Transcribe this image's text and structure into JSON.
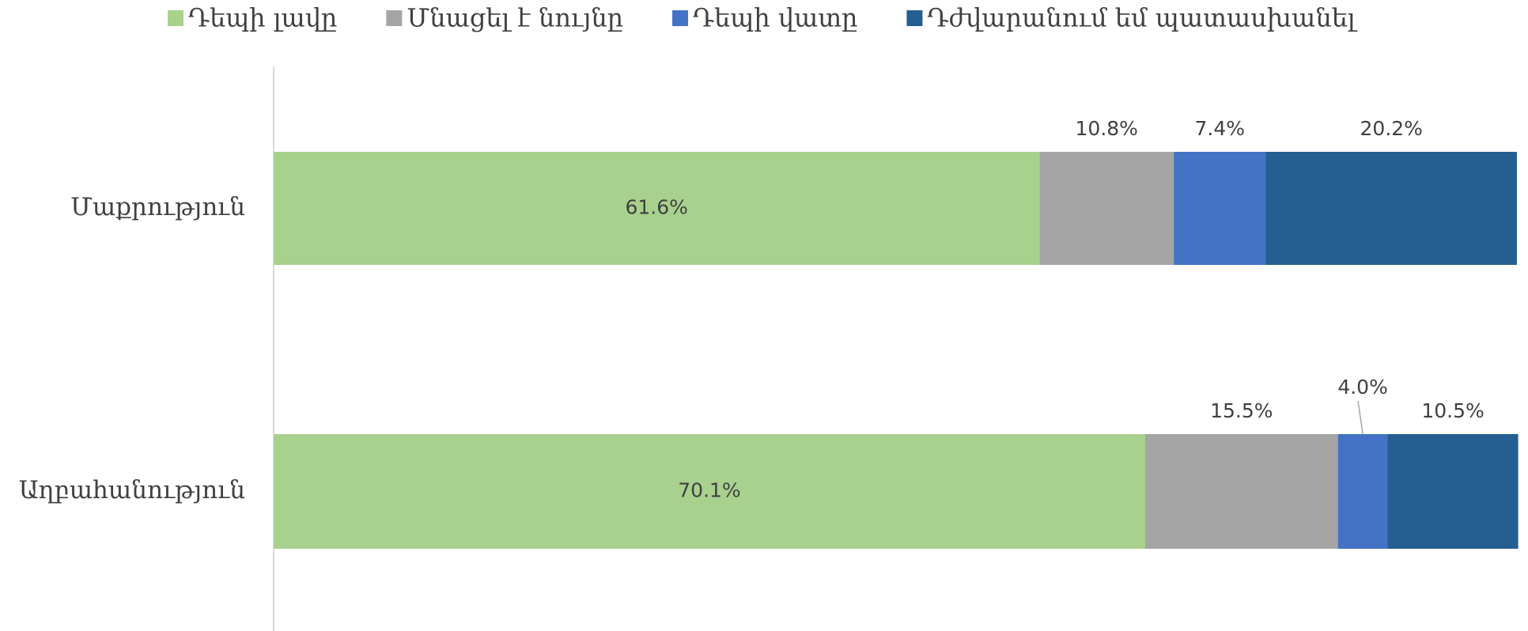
{
  "chart_data": {
    "type": "stacked-bar-horizontal",
    "categories": [
      "Մաքրություն",
      "Աղբահանություն"
    ],
    "series": [
      {
        "name": "Դեպի լավը",
        "color": "#a9d18e",
        "values": [
          61.6,
          70.1
        ],
        "value_labels": [
          "61.6%",
          "70.1%"
        ]
      },
      {
        "name": "Մնացել է նույնը",
        "color": "#a5a5a5",
        "values": [
          10.8,
          15.5
        ],
        "value_labels": [
          "10.8%",
          "15.5%"
        ]
      },
      {
        "name": "Դեպի վատը",
        "color": "#4472c4",
        "values": [
          7.4,
          4.0
        ],
        "value_labels": [
          "7.4%",
          "4.0%"
        ]
      },
      {
        "name": "Դժվարանում եմ պատասխանել",
        "color": "#255e91",
        "values": [
          20.2,
          10.5
        ],
        "value_labels": [
          "20.2%",
          "10.5%"
        ]
      }
    ],
    "xlim": [
      0,
      100
    ],
    "legend": "top"
  }
}
